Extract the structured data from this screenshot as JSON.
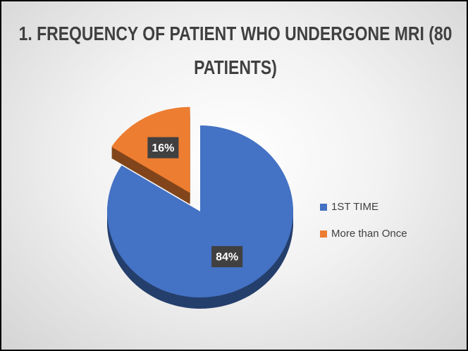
{
  "chart_data": {
    "type": "pie",
    "title": "1. FREQUENCY OF PATIENT WHO UNDERGONE MRI (80 PATIENTS)",
    "categories": [
      "1ST TIME",
      "More than Once"
    ],
    "values": [
      84,
      16
    ],
    "value_labels": [
      "84%",
      "16%"
    ],
    "colors": [
      "#4472c4",
      "#ed7d31"
    ],
    "legend": "right"
  }
}
